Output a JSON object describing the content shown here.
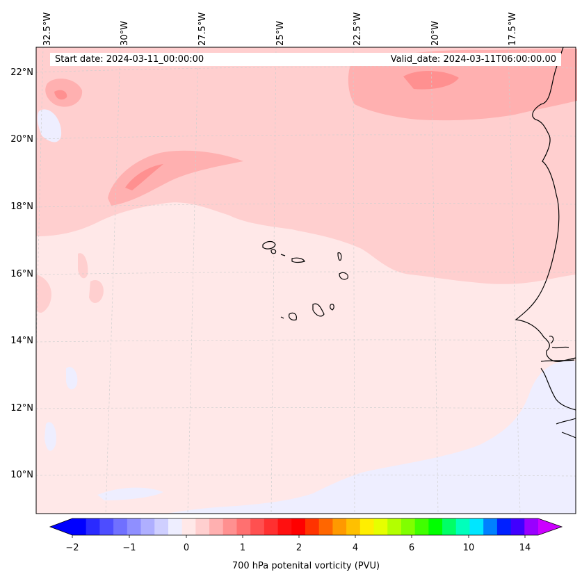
{
  "map": {
    "longitude_labels": [
      "32.5°W",
      "30°W",
      "27.5°W",
      "25°W",
      "22.5°W",
      "20°W",
      "17.5°W"
    ],
    "latitude_labels": [
      "22°N",
      "20°N",
      "18°N",
      "16°N",
      "14°N",
      "12°N",
      "10°N"
    ],
    "start_date_text": "Start date: 2024-03-11_00:00:00",
    "valid_date_text": "Valid_date: 2024-03-11T06:00:00.00"
  },
  "colorbar": {
    "title": "700 hPa potenital vorticity (PVU)",
    "tick_labels": [
      "−2",
      "−1",
      "0",
      "1",
      "2",
      "4",
      "6",
      "10",
      "14"
    ],
    "colors": [
      "#0000ff",
      "#2a2aff",
      "#4d4dff",
      "#7070ff",
      "#8f8fff",
      "#afafff",
      "#cfcfff",
      "#eeeeff",
      "#ffe8e8",
      "#ffcfcf",
      "#ffb0b0",
      "#ff9090",
      "#ff7070",
      "#ff5050",
      "#ff3030",
      "#ff1010",
      "#ff0000",
      "#ff3300",
      "#ff6600",
      "#ff9900",
      "#ffc000",
      "#ffee00",
      "#e6ff00",
      "#b3ff00",
      "#80ff00",
      "#40ff00",
      "#00ff00",
      "#00ff66",
      "#00ffbb",
      "#00e6ff",
      "#0080ff",
      "#0020ff",
      "#4000ff",
      "#9900ff"
    ],
    "extend_low_color": "#0000ff",
    "extend_high_color": "#cc00ff"
  },
  "field_colors": {
    "background": "#ffe8e8",
    "pink_1": "#ffcfcf",
    "pink_2": "#ffb0b0",
    "pink_3": "#ff9090",
    "blue_light": "#eeeeff",
    "coast": "#000000"
  }
}
